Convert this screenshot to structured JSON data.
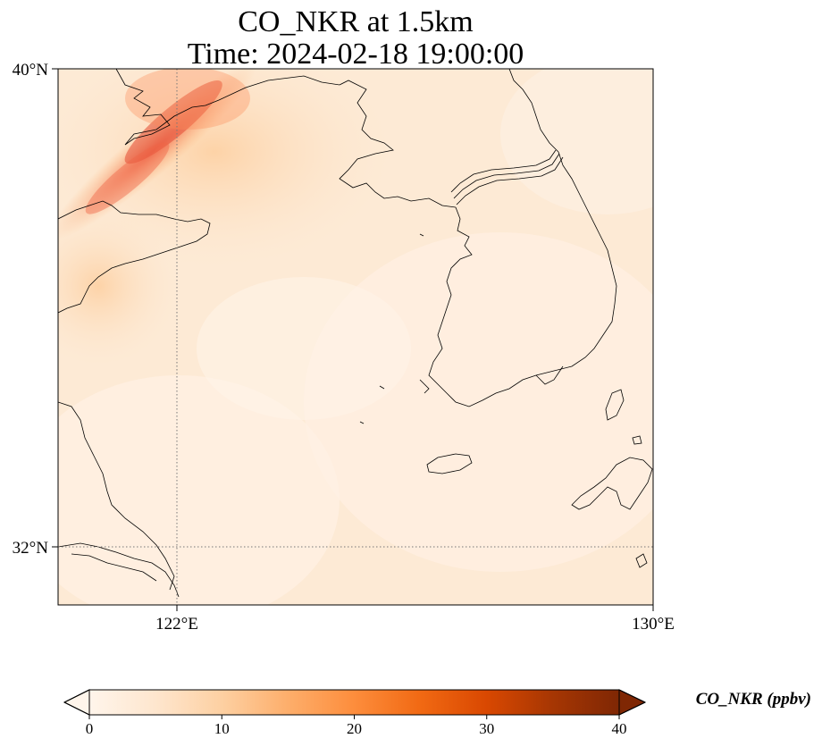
{
  "title": {
    "line1": "CO_NKR at 1.5km",
    "line2": "Time: 2024-02-18 19:00:00"
  },
  "map": {
    "lon_range": [
      120,
      130
    ],
    "lat_range": [
      31,
      40
    ],
    "lat_ticks": [
      {
        "value": 40,
        "label": "40°N"
      },
      {
        "value": 32,
        "label": "32°N"
      }
    ],
    "lon_ticks": [
      {
        "value": 122,
        "label": "122°E"
      },
      {
        "value": 130,
        "label": "130°E"
      }
    ],
    "gridlines": {
      "lon": [
        122
      ],
      "lat": [
        32
      ],
      "style": "dotted"
    }
  },
  "colorbar": {
    "label": "CO_NKR (ppbv)",
    "min": 0,
    "max": 40,
    "ticks": [
      {
        "value": 0,
        "label": "0"
      },
      {
        "value": 10,
        "label": "10"
      },
      {
        "value": 20,
        "label": "20"
      },
      {
        "value": 30,
        "label": "30"
      },
      {
        "value": 40,
        "label": "40"
      }
    ],
    "extend": "both",
    "colormap": [
      "#fff5eb",
      "#fee6ce",
      "#fdd0a2",
      "#fdae6b",
      "#fd8d3c",
      "#f16913",
      "#d94801",
      "#a63603",
      "#7f2704"
    ]
  }
}
